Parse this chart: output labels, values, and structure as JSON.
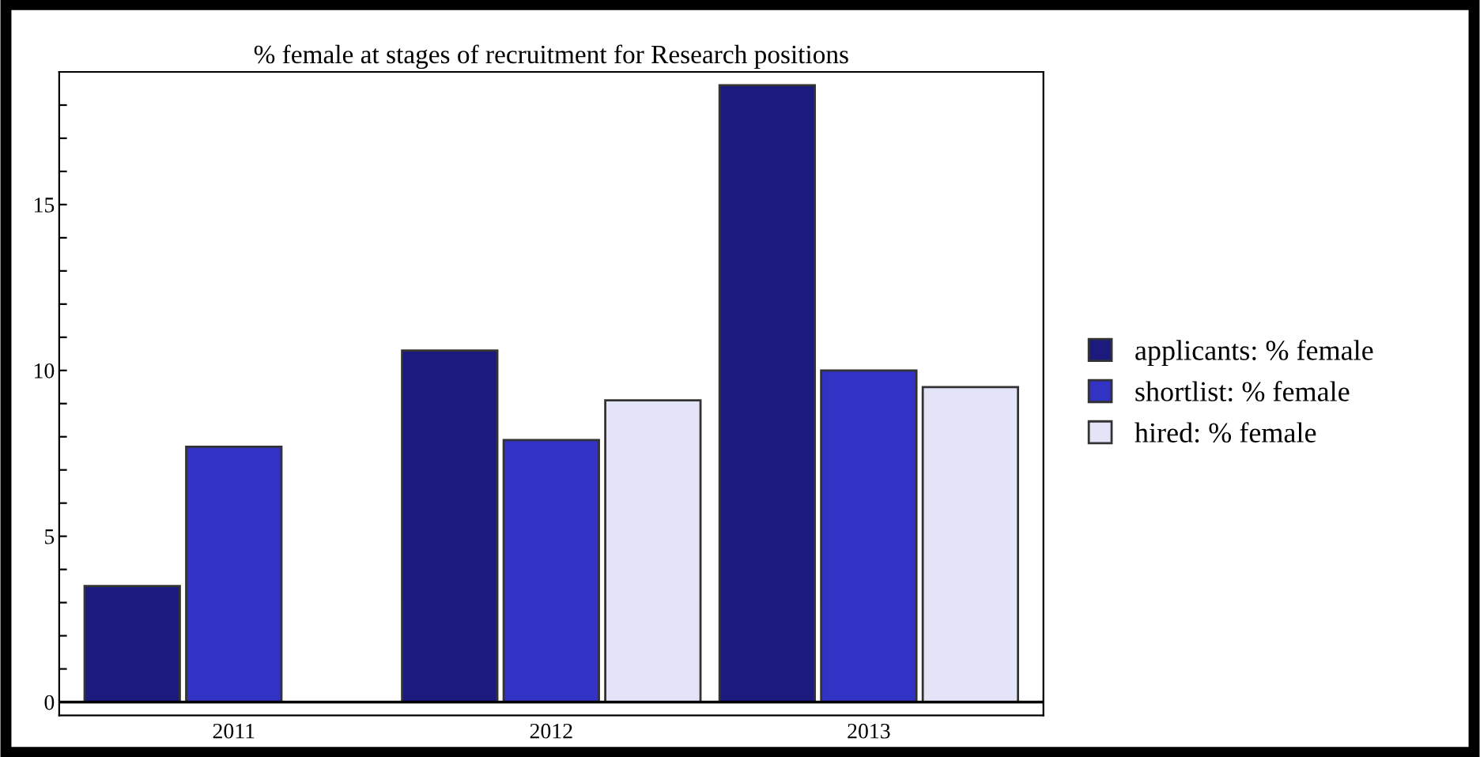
{
  "chart_data": {
    "type": "bar",
    "title": "% female at stages of recruitment for Research positions",
    "categories": [
      "2011",
      "2012",
      "2013"
    ],
    "series": [
      {
        "name": "applicants: % female",
        "color": "#1c1a7c",
        "values": [
          3.5,
          10.6,
          18.6
        ]
      },
      {
        "name": "shortlist: % female",
        "color": "#3232c4",
        "values": [
          7.7,
          7.9,
          10.0
        ]
      },
      {
        "name": "hired: % female",
        "color": "#e4e4f8",
        "values": [
          null,
          9.1,
          9.5
        ]
      }
    ],
    "ylim": [
      -0.4,
      19
    ],
    "yticks": [
      0,
      {
        "value": 1,
        "label": null
      },
      {
        "value": 2,
        "label": null
      },
      {
        "value": 3,
        "label": null
      },
      {
        "value": 4,
        "label": null
      },
      5,
      {
        "value": 6,
        "label": null
      },
      {
        "value": 7,
        "label": null
      },
      {
        "value": 8,
        "label": null
      },
      {
        "value": 9,
        "label": null
      },
      10,
      {
        "value": 11,
        "label": null
      },
      {
        "value": 12,
        "label": null
      },
      {
        "value": 13,
        "label": null
      },
      {
        "value": 14,
        "label": null
      },
      15,
      {
        "value": 16,
        "label": null
      },
      {
        "value": 17,
        "label": null
      },
      {
        "value": 18,
        "label": null
      }
    ],
    "legend": "right"
  }
}
